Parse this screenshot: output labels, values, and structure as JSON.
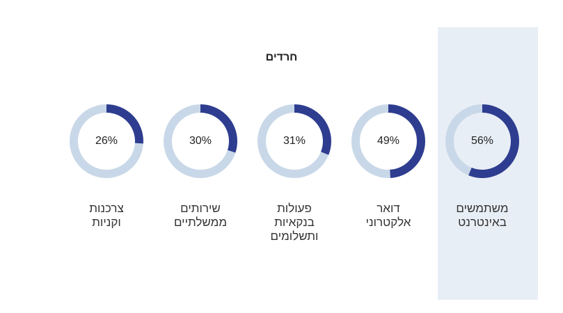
{
  "chart_data": {
    "type": "donut",
    "title": "חרדים",
    "categories": [
      [
        "צרכנות",
        "וקניות"
      ],
      [
        "שירותים",
        "ממשלתיים"
      ],
      [
        "פעולות",
        "בנקאיות",
        "ותשלומים"
      ],
      [
        "דואר",
        "אלקטרוני"
      ],
      [
        "משתמשים",
        "באינטרנט"
      ]
    ],
    "values": [
      26,
      30,
      31,
      49,
      56
    ],
    "value_labels": [
      "26%",
      "30%",
      "31%",
      "49%",
      "56%"
    ],
    "unit": "%",
    "max": 100,
    "highlighted_category_index": 4,
    "colors": {
      "filled": "#2e3d8f",
      "track": "#c9d8e8",
      "highlight_background": "#e8eef5"
    }
  }
}
